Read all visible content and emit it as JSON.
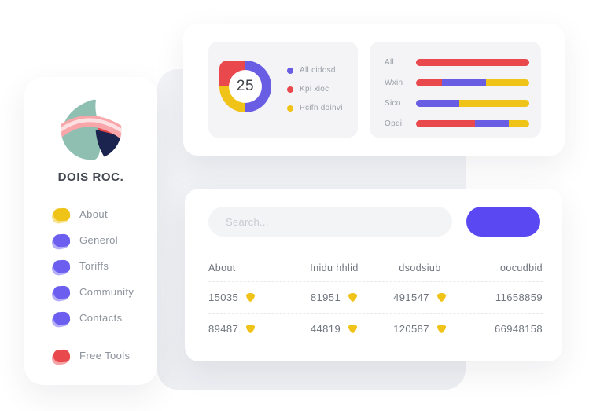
{
  "colors": {
    "red": "#e9494d",
    "purple": "#695de4",
    "yellow": "#f0c318",
    "button_purple": "#5a49f2",
    "logo_teal": "#8fbfb1",
    "logo_navy": "#1b234f",
    "logo_pink": "#f8a6a9",
    "logo_pink_light": "#fde0e1"
  },
  "sidebar": {
    "title": "DOIS ROC.",
    "items": [
      {
        "label": "About",
        "color": "#f0c318"
      },
      {
        "label": "Generol",
        "color": "#6c5ff0"
      },
      {
        "label": "Toriffs",
        "color": "#6c5ff0"
      },
      {
        "label": "Community",
        "color": "#6c5ff0"
      },
      {
        "label": "Contacts",
        "color": "#6c5ff0"
      }
    ],
    "footer_item": {
      "label": "Free Tools",
      "color": "#e9494d"
    }
  },
  "stats_card": {
    "donut": {
      "center_value": "25",
      "legend": [
        {
          "label": "All cidosd",
          "color": "#695de4"
        },
        {
          "label": "Kpi xioc",
          "color": "#e9494d"
        },
        {
          "label": "Pcifn doinvi",
          "color": "#f0c318"
        }
      ]
    },
    "bars": {
      "rows": [
        {
          "label": "All",
          "segments": [
            {
              "color": "red",
              "pct": 100
            }
          ]
        },
        {
          "label": "Wxin",
          "segments": [
            {
              "color": "red",
              "pct": 23
            },
            {
              "color": "purple",
              "pct": 39
            },
            {
              "color": "yellow",
              "pct": 38
            }
          ]
        },
        {
          "label": "Sico",
          "segments": [
            {
              "color": "purple",
              "pct": 38
            },
            {
              "color": "yellow",
              "pct": 62
            }
          ]
        },
        {
          "label": "Opdi",
          "segments": [
            {
              "color": "red",
              "pct": 52
            },
            {
              "color": "purple",
              "pct": 30
            },
            {
              "color": "yellow",
              "pct": 18
            }
          ]
        }
      ]
    }
  },
  "table_card": {
    "search_placeholder": "Search...",
    "headers": [
      "About",
      "Inidu hhlid",
      "dsodsiub",
      "oocudbid"
    ],
    "rows": [
      [
        {
          "value": "15035",
          "icon": true
        },
        {
          "value": "81951",
          "icon": true
        },
        {
          "value": "491547",
          "icon": true
        },
        {
          "value": "11658859",
          "icon": false
        }
      ],
      [
        {
          "value": "89487",
          "icon": true
        },
        {
          "value": "44819",
          "icon": true
        },
        {
          "value": "120587",
          "icon": true
        },
        {
          "value": "66948158",
          "icon": false
        }
      ]
    ]
  },
  "chart_data": [
    {
      "type": "pie",
      "title": "",
      "categories": [
        "All cidosd",
        "Kpi xioc",
        "Pcifn doinvi"
      ],
      "values": [
        50,
        25,
        25
      ],
      "center_label": "25",
      "legend_position": "right"
    },
    {
      "type": "bar",
      "orientation": "horizontal-stacked",
      "categories": [
        "All",
        "Wxin",
        "Sico",
        "Opdi"
      ],
      "series": [
        {
          "name": "Kpi xioc (red)",
          "values": [
            100,
            23,
            0,
            52
          ]
        },
        {
          "name": "All cidosd (purple)",
          "values": [
            0,
            39,
            38,
            30
          ]
        },
        {
          "name": "Pcifn doinvi (yellow)",
          "values": [
            0,
            38,
            62,
            18
          ]
        }
      ],
      "xlim": [
        0,
        100
      ],
      "grid": false
    }
  ]
}
